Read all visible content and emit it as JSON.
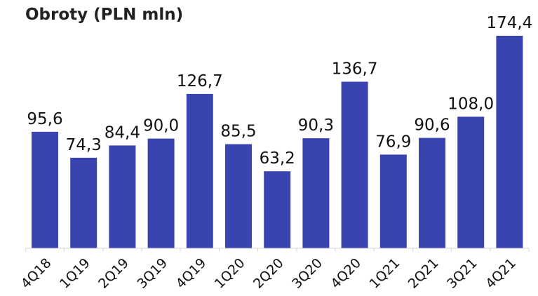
{
  "chart_data": {
    "type": "bar",
    "title": "Obroty (PLN mln)",
    "xlabel": "",
    "ylabel": "",
    "categories": [
      "4Q18",
      "1Q19",
      "2Q19",
      "3Q19",
      "4Q19",
      "1Q20",
      "2Q20",
      "3Q20",
      "4Q20",
      "1Q21",
      "2Q21",
      "3Q21",
      "4Q21"
    ],
    "values": [
      95.6,
      74.3,
      84.4,
      90.0,
      126.7,
      85.5,
      63.2,
      90.3,
      136.7,
      76.9,
      90.6,
      108.0,
      174.4
    ],
    "value_labels": [
      "95,6",
      "74,3",
      "84,4",
      "90,0",
      "126,7",
      "85,5",
      "63,2",
      "90,3",
      "136,7",
      "76,9",
      "90,6",
      "108,0",
      "174,4"
    ],
    "ylim": [
      0,
      174.4
    ],
    "grid": false,
    "colors": {
      "bar": "#3a44b0",
      "axis": "#d4d4d4"
    }
  }
}
